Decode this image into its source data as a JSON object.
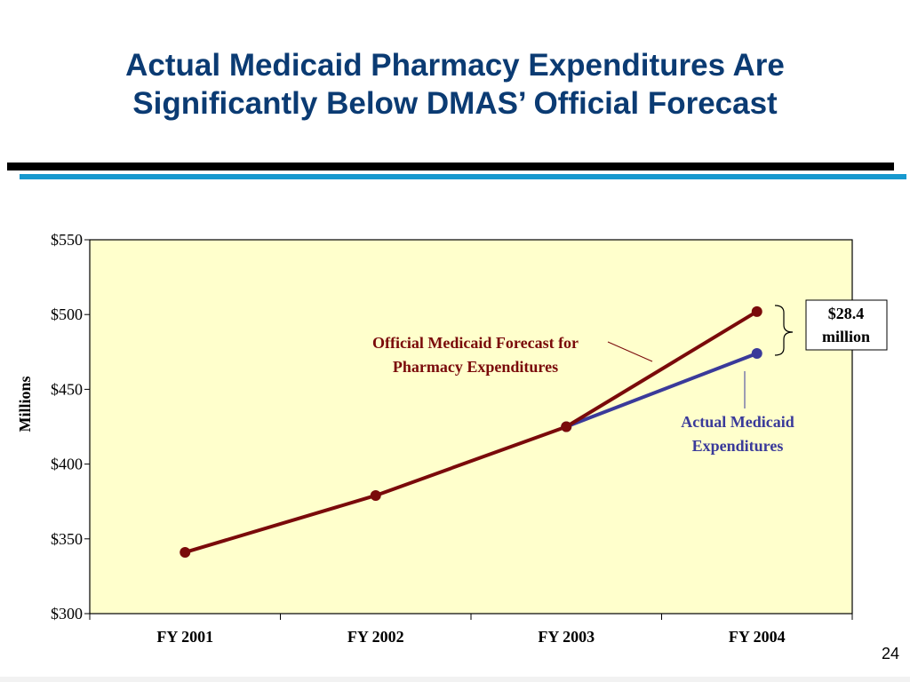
{
  "slide": {
    "title_line1": "Actual Medicaid Pharmacy Expenditures Are",
    "title_line2": "Significantly Below DMAS’ Official Forecast",
    "page_number": "24"
  },
  "colors": {
    "title": "#0b3b73",
    "forecast": "#7a0a0a",
    "actual": "#3a3a9a",
    "plot_background": "#ffffcc",
    "rule_black": "#000000",
    "rule_blue": "#1799cf"
  },
  "chart_data": {
    "type": "line",
    "categories": [
      "FY 2001",
      "FY 2002",
      "FY 2003",
      "FY 2004"
    ],
    "ylabel": "Millions",
    "ylim": [
      300,
      550
    ],
    "yticks": [
      300,
      350,
      400,
      450,
      500,
      550
    ],
    "ytick_labels": [
      "$300",
      "$350",
      "$400",
      "$450",
      "$500",
      "$550"
    ],
    "grid": false,
    "series": [
      {
        "name": "Official Medicaid Forecast for Pharmacy Expenditures",
        "label_lines": [
          "Official Medicaid Forecast for",
          "Pharmacy Expenditures"
        ],
        "values": [
          341,
          379,
          425,
          502
        ]
      },
      {
        "name": "Actual Medicaid Expenditures",
        "label_lines": [
          "Actual Medicaid",
          "Expenditures"
        ],
        "values": [
          null,
          null,
          425,
          474
        ]
      }
    ],
    "annotation": {
      "lines": [
        "$28.4",
        "million"
      ]
    }
  }
}
